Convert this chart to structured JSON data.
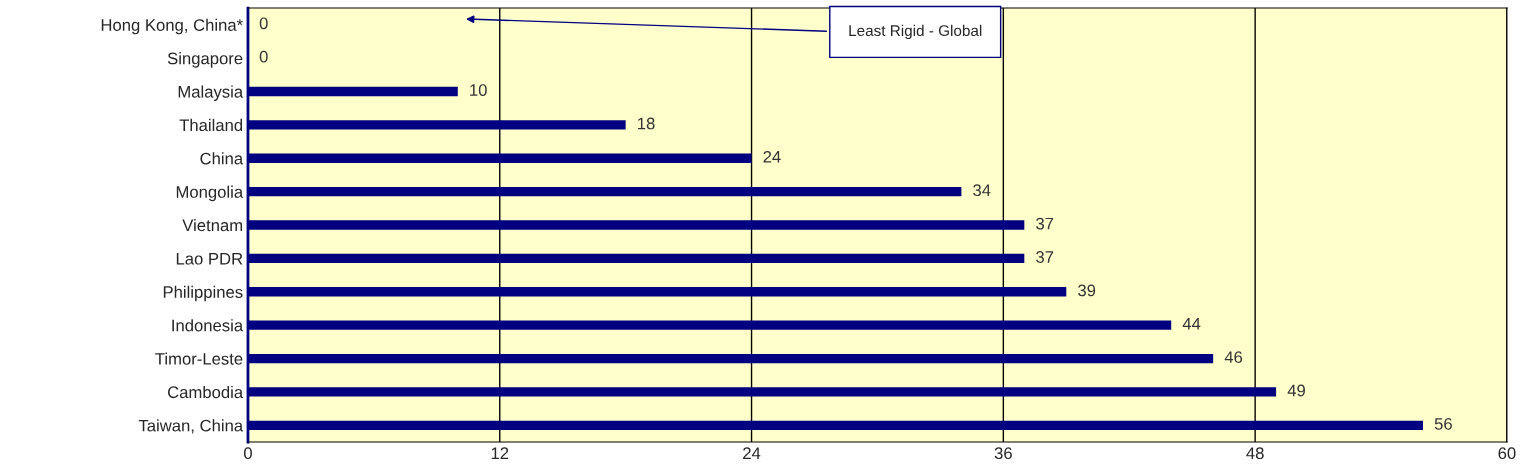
{
  "chart_data": {
    "type": "bar",
    "orientation": "horizontal",
    "categories": [
      "Hong Kong, China*",
      "Singapore",
      "Malaysia",
      "Thailand",
      "China",
      "Mongolia",
      "Vietnam",
      "Lao PDR",
      "Philippines",
      "Indonesia",
      "Timor-Leste",
      "Cambodia",
      "Taiwan, China"
    ],
    "values": [
      0,
      0,
      10,
      18,
      24,
      34,
      37,
      37,
      39,
      44,
      46,
      49,
      56
    ],
    "color": "#000080",
    "xlim": [
      0,
      60
    ],
    "xticks": [
      0,
      12,
      24,
      36,
      48,
      60
    ],
    "grid": "x",
    "data_labels": true,
    "annotations": [
      "Least Rigid - Global"
    ]
  }
}
